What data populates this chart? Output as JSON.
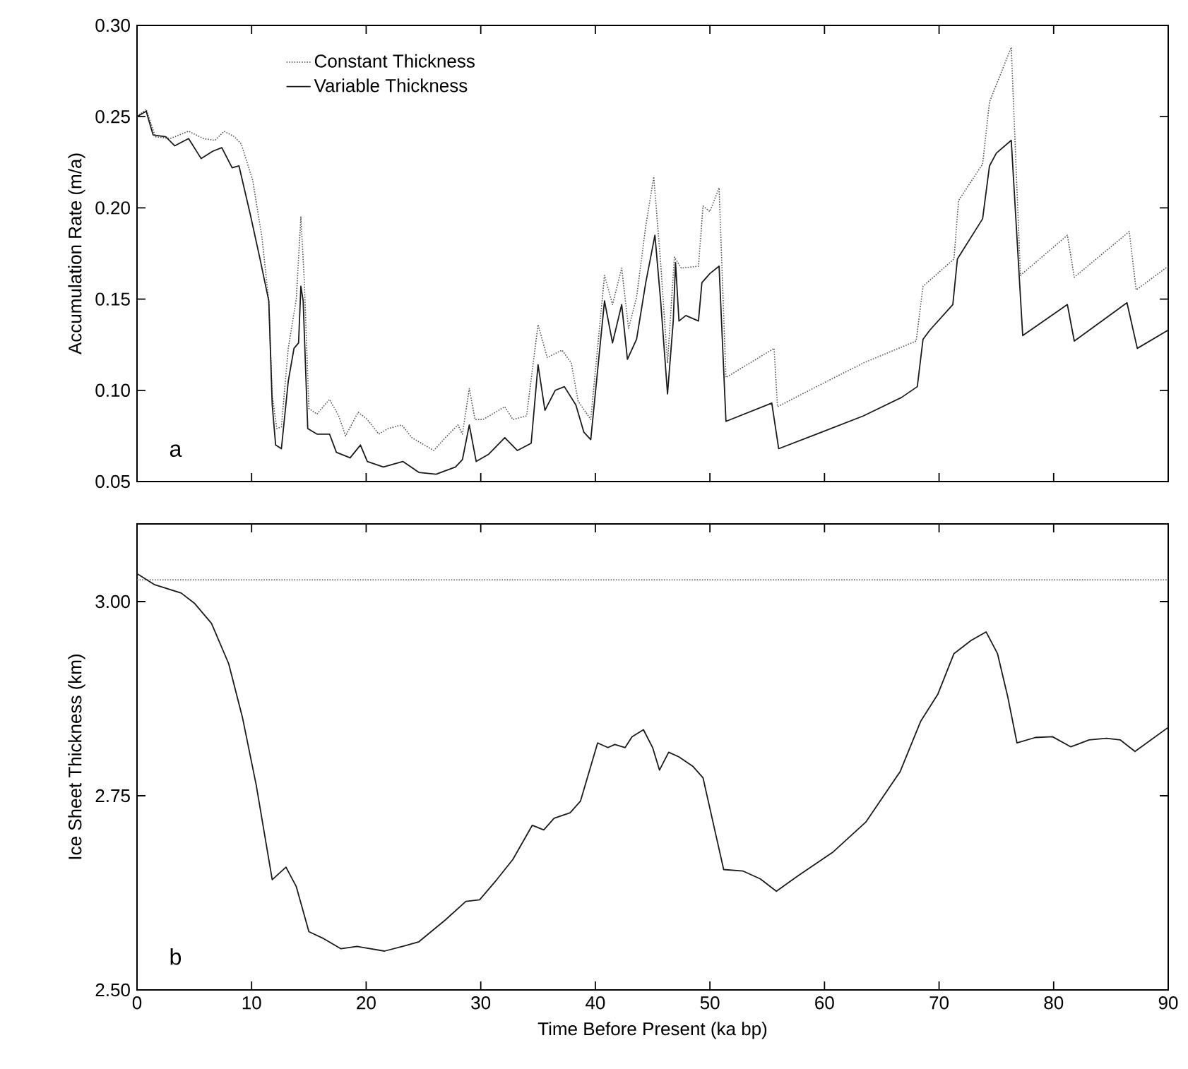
{
  "chart_data": [
    {
      "type": "line",
      "ylabel": "Accumulation Rate (m/a)",
      "xlim": [
        0,
        90
      ],
      "ylim": [
        0.05,
        0.3
      ],
      "xticks": [
        0,
        10,
        20,
        30,
        40,
        50,
        60,
        70,
        80,
        90
      ],
      "yticks": [
        {
          "value": 0.05,
          "label": "0.05"
        },
        {
          "value": 0.1,
          "label": "0.10"
        },
        {
          "value": 0.15,
          "label": "0.15"
        },
        {
          "value": 0.2,
          "label": "0.20"
        },
        {
          "value": 0.25,
          "label": "0.25"
        },
        {
          "value": 0.3,
          "label": "0.30"
        }
      ],
      "tick_labels": "y",
      "legend": "top left",
      "annotations": [
        "a"
      ],
      "series": [
        {
          "name": "Constant Thickness",
          "color": "#555555",
          "line_style": "dotted",
          "x": [
            0,
            0.8,
            1.6,
            2.9,
            4.5,
            5.8,
            6.8,
            7.6,
            8.5,
            9.1,
            10.1,
            10.9,
            11.5,
            11.8,
            12.2,
            12.6,
            13.2,
            13.9,
            14.3,
            14.6,
            15.0,
            15.7,
            16.8,
            17.6,
            18.2,
            19.3,
            20.1,
            21.1,
            21.9,
            23.1,
            24.0,
            25.9,
            26.9,
            28.0,
            28.4,
            29.0,
            29.5,
            30.2,
            32.1,
            32.8,
            34.0,
            35.0,
            35.8,
            37.1,
            37.9,
            38.5,
            39.6,
            40.8,
            41.5,
            42.3,
            42.9,
            43.6,
            44.4,
            45.1,
            45.7,
            46.3,
            46.9,
            47.5,
            49.0,
            49.4,
            50.0,
            50.8,
            51.4,
            55.6,
            55.9,
            59.3,
            63.4,
            68.0,
            68.6,
            71.3,
            71.7,
            73.8,
            74.4,
            76.3,
            77.1,
            81.2,
            81.8,
            86.6,
            87.2,
            90
          ],
          "values": [
            0.25,
            0.254,
            0.239,
            0.238,
            0.242,
            0.238,
            0.237,
            0.242,
            0.239,
            0.235,
            0.215,
            0.184,
            0.149,
            0.097,
            0.079,
            0.08,
            0.123,
            0.15,
            0.195,
            0.16,
            0.09,
            0.087,
            0.095,
            0.086,
            0.075,
            0.088,
            0.084,
            0.076,
            0.079,
            0.081,
            0.074,
            0.067,
            0.074,
            0.081,
            0.076,
            0.101,
            0.084,
            0.084,
            0.091,
            0.084,
            0.086,
            0.136,
            0.118,
            0.122,
            0.115,
            0.094,
            0.084,
            0.163,
            0.147,
            0.167,
            0.134,
            0.151,
            0.19,
            0.217,
            0.17,
            0.115,
            0.173,
            0.167,
            0.168,
            0.201,
            0.198,
            0.211,
            0.107,
            0.123,
            0.091,
            0.102,
            0.115,
            0.127,
            0.157,
            0.172,
            0.204,
            0.224,
            0.258,
            0.288,
            0.163,
            0.185,
            0.162,
            0.187,
            0.155,
            0.168
          ]
        },
        {
          "name": "Variable Thickness",
          "color": "#1a1a1a",
          "line_style": "solid",
          "x": [
            0,
            0.8,
            1.4,
            2.5,
            3.3,
            4.5,
            5.6,
            6.6,
            7.4,
            8.3,
            8.9,
            9.9,
            10.7,
            11.5,
            11.8,
            12.1,
            12.6,
            13.2,
            13.7,
            14.1,
            14.3,
            14.5,
            14.9,
            15.7,
            16.8,
            17.4,
            18.6,
            19.5,
            20.1,
            21.5,
            23.2,
            24.6,
            26.1,
            27.8,
            28.4,
            29.0,
            29.6,
            30.7,
            32.1,
            33.2,
            34.4,
            35.0,
            35.6,
            36.5,
            37.3,
            38.3,
            39.0,
            39.6,
            40.8,
            41.5,
            42.3,
            42.8,
            43.6,
            44.4,
            45.2,
            45.7,
            46.3,
            46.8,
            47.0,
            47.3,
            47.9,
            49.0,
            49.3,
            50.0,
            50.8,
            51.4,
            55.4,
            56.0,
            59.3,
            63.4,
            66.7,
            68.1,
            68.6,
            69.2,
            71.2,
            71.6,
            73.8,
            74.4,
            75.0,
            76.3,
            77.3,
            81.2,
            81.8,
            86.4,
            87.3,
            90
          ],
          "values": [
            0.25,
            0.253,
            0.24,
            0.239,
            0.234,
            0.238,
            0.227,
            0.231,
            0.233,
            0.222,
            0.223,
            0.196,
            0.173,
            0.149,
            0.092,
            0.07,
            0.068,
            0.105,
            0.123,
            0.126,
            0.157,
            0.149,
            0.079,
            0.076,
            0.076,
            0.066,
            0.063,
            0.07,
            0.061,
            0.058,
            0.061,
            0.055,
            0.054,
            0.058,
            0.062,
            0.081,
            0.061,
            0.065,
            0.074,
            0.067,
            0.071,
            0.114,
            0.089,
            0.1,
            0.102,
            0.092,
            0.077,
            0.073,
            0.149,
            0.126,
            0.147,
            0.117,
            0.128,
            0.159,
            0.185,
            0.149,
            0.098,
            0.138,
            0.17,
            0.138,
            0.141,
            0.138,
            0.159,
            0.164,
            0.168,
            0.083,
            0.093,
            0.068,
            0.076,
            0.086,
            0.096,
            0.102,
            0.128,
            0.133,
            0.147,
            0.172,
            0.194,
            0.223,
            0.23,
            0.237,
            0.13,
            0.147,
            0.127,
            0.148,
            0.123,
            0.133
          ]
        }
      ]
    },
    {
      "type": "line",
      "xlabel": "Time Before Present (ka bp)",
      "ylabel": "Ice Sheet Thickness (km)",
      "xlim": [
        0,
        90
      ],
      "ylim": [
        2.5,
        3.1
      ],
      "xticks": [
        0,
        10,
        20,
        30,
        40,
        50,
        60,
        70,
        80,
        90
      ],
      "yticks": [
        {
          "value": 2.5,
          "label": "2.50"
        },
        {
          "value": 2.75,
          "label": "2.75"
        },
        {
          "value": 3.0,
          "label": "3.00"
        }
      ],
      "annotations": [
        "b"
      ],
      "series": [
        {
          "color": "#555555",
          "line_style": "dotted",
          "x": [
            0,
            90
          ],
          "values": [
            3.028,
            3.028
          ]
        },
        {
          "color": "#1a1a1a",
          "line_style": "solid",
          "x": [
            0,
            1.5,
            3.85,
            5.0,
            6.5,
            8,
            9.2,
            10.4,
            11.8,
            13.0,
            13.9,
            15,
            16.3,
            17.8,
            19.2,
            21.6,
            23.4,
            24.6,
            26.9,
            28.7,
            29.9,
            31.4,
            32.8,
            34.5,
            35.5,
            36.4,
            37.8,
            38.7,
            40.2,
            41.1,
            41.7,
            42.6,
            43.2,
            44.2,
            45.0,
            45.6,
            46.4,
            47.3,
            48.5,
            49.4,
            51.2,
            52.9,
            54.4,
            55.8,
            57.7,
            60.7,
            63.6,
            66.6,
            68.4,
            69.9,
            71.3,
            72.8,
            74.1,
            75.1,
            76.0,
            76.8,
            78.4,
            79.9,
            81.5,
            83.1,
            84.6,
            85.8,
            87.1,
            90
          ],
          "values": [
            3.036,
            3.022,
            3.011,
            2.998,
            2.972,
            2.92,
            2.851,
            2.764,
            2.642,
            2.658,
            2.633,
            2.575,
            2.566,
            2.553,
            2.556,
            2.55,
            2.557,
            2.562,
            2.59,
            2.614,
            2.616,
            2.642,
            2.668,
            2.712,
            2.706,
            2.721,
            2.728,
            2.743,
            2.818,
            2.812,
            2.816,
            2.812,
            2.826,
            2.835,
            2.812,
            2.783,
            2.806,
            2.8,
            2.788,
            2.773,
            2.655,
            2.653,
            2.643,
            2.627,
            2.647,
            2.677,
            2.716,
            2.781,
            2.846,
            2.881,
            2.933,
            2.95,
            2.961,
            2.933,
            2.877,
            2.818,
            2.825,
            2.826,
            2.813,
            2.822,
            2.824,
            2.822,
            2.807,
            2.838
          ]
        }
      ]
    }
  ]
}
